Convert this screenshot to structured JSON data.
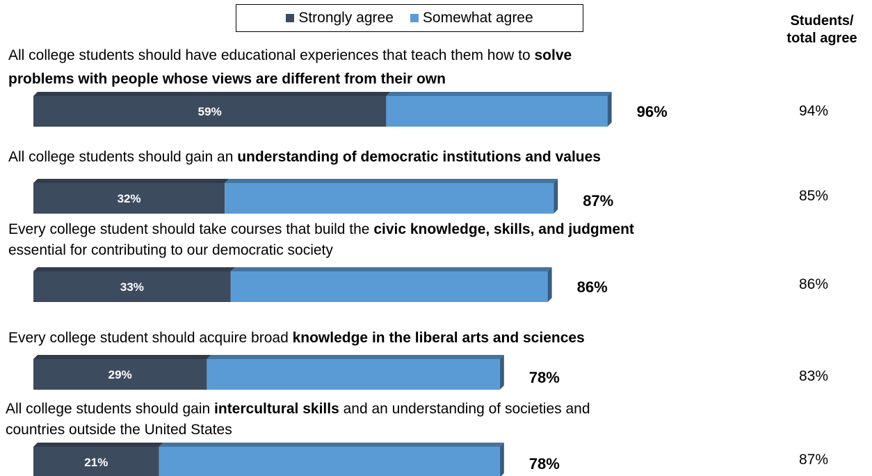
{
  "legend": {
    "strong_label": "Strongly agree",
    "somewhat_label": "Somewhat agree",
    "strong_color": "#3d4b5f",
    "somewhat_color": "#5b9bd5"
  },
  "side_header": {
    "line1": "Students/",
    "line2": "total agree"
  },
  "statements": [
    {
      "parts": [
        {
          "t": "All college students should have educational experiences that teach them how to ",
          "bold": false
        },
        {
          "t": "solve",
          "bold": true
        }
      ],
      "parts2": [
        {
          "t": "problems with people whose views are different from their own",
          "bold": true
        }
      ]
    },
    {
      "parts": [
        {
          "t": "All college students should gain an ",
          "bold": false
        },
        {
          "t": "understanding of democratic institutions and values",
          "bold": true
        }
      ],
      "parts2": []
    },
    {
      "parts": [
        {
          "t": "Every college student should take courses that build the ",
          "bold": false
        },
        {
          "t": "civic knowledge, skills, and judgment",
          "bold": true
        }
      ],
      "parts2": [
        {
          "t": "essential for contributing to our democratic society",
          "bold": false
        }
      ]
    },
    {
      "parts": [
        {
          "t": "Every college student should acquire broad ",
          "bold": false
        },
        {
          "t": "knowledge in the liberal arts and sciences",
          "bold": true
        }
      ],
      "parts2": []
    },
    {
      "parts": [
        {
          "t": "All college students should gain ",
          "bold": false
        },
        {
          "t": "intercultural skills",
          "bold": true
        },
        {
          "t": " and an understanding of societies and",
          "bold": false
        }
      ],
      "parts2": [
        {
          "t": "countries outside the United States",
          "bold": false
        }
      ]
    }
  ],
  "chart_data": {
    "type": "bar",
    "orientation": "horizontal",
    "stacked": true,
    "categories": [
      "All college students should have educational experiences that teach them how to solve problems with people whose views are different from their own",
      "All college students should gain an understanding of democratic institutions and values",
      "Every college student should take courses that build the civic knowledge, skills, and judgment essential for contributing to our democratic society",
      "Every college student should acquire broad knowledge in the liberal arts and sciences",
      "All college students should gain intercultural skills and an understanding of societies and countries outside the United States"
    ],
    "series": [
      {
        "name": "Strongly agree",
        "values": [
          59,
          32,
          33,
          29,
          21
        ],
        "labels": [
          "59%",
          "32%",
          "33%",
          "29%",
          "21%"
        ]
      },
      {
        "name": "Somewhat agree",
        "values": [
          37,
          55,
          53,
          49,
          57
        ]
      }
    ],
    "totals": [
      "96%",
      "87%",
      "86%",
      "78%",
      "78%"
    ],
    "student_totals": [
      "94%",
      "85%",
      "86%",
      "83%",
      "87%"
    ],
    "xlim": [
      0,
      100
    ],
    "legend_position": "top",
    "grid": false
  }
}
